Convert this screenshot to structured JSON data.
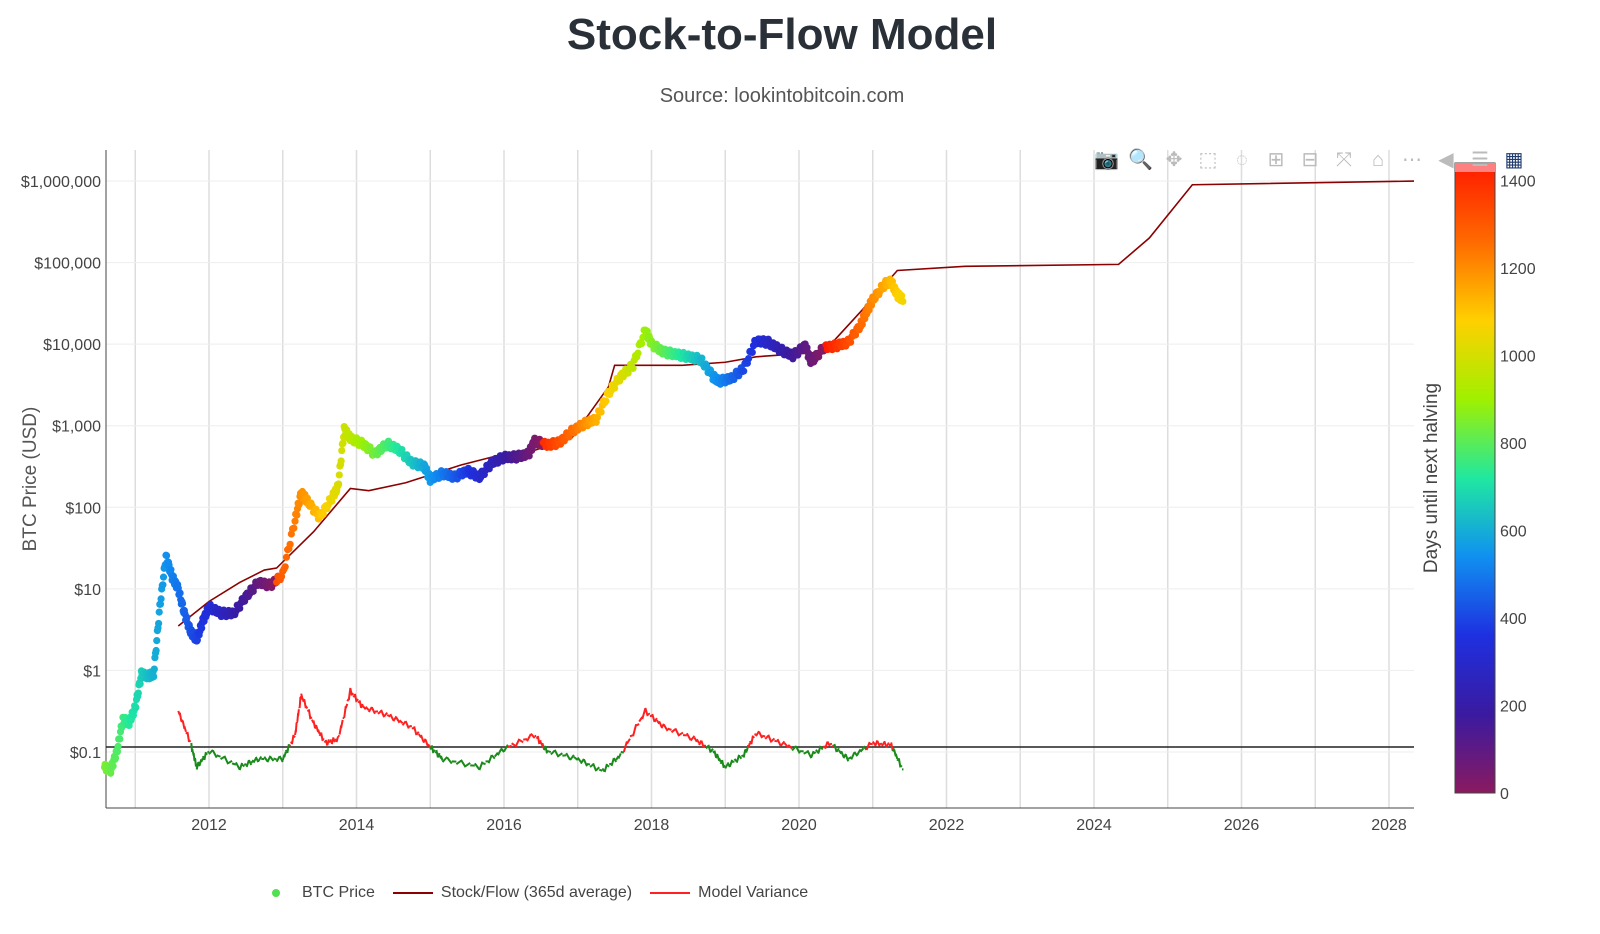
{
  "title": "Stock-to-Flow Model",
  "subtitle": "Source: lookintobitcoin.com",
  "toolbar": [
    {
      "name": "camera-icon",
      "glyph": "📷"
    },
    {
      "name": "zoom-icon",
      "glyph": "🔍"
    },
    {
      "name": "pan-icon",
      "glyph": "✥"
    },
    {
      "name": "box-select-icon",
      "glyph": "⬚"
    },
    {
      "name": "lasso-select-icon",
      "glyph": "◌"
    },
    {
      "name": "zoom-in-icon",
      "glyph": "⊞"
    },
    {
      "name": "zoom-out-icon",
      "glyph": "⊟"
    },
    {
      "name": "autoscale-icon",
      "glyph": "⤧"
    },
    {
      "name": "reset-axes-icon",
      "glyph": "⌂"
    },
    {
      "name": "spike-lines-icon",
      "glyph": "⋯"
    },
    {
      "name": "hover-closest-icon",
      "glyph": "◀"
    },
    {
      "name": "hover-compare-icon",
      "glyph": "☰"
    },
    {
      "name": "plotly-logo-icon",
      "glyph": "▦"
    }
  ],
  "chart_data": {
    "type": "scatter",
    "ylabel": "BTC Price (USD)",
    "yscale": "log",
    "ylim": [
      0.03,
      2000000
    ],
    "xlim": [
      "2010-08",
      "2028-05"
    ],
    "x_ticks": [
      "2012",
      "2014",
      "2016",
      "2018",
      "2020",
      "2022",
      "2024",
      "2026",
      "2028"
    ],
    "y_ticks": [
      {
        "v": 1000000,
        "label": "$1,000,000"
      },
      {
        "v": 100000,
        "label": "$100,000"
      },
      {
        "v": 10000,
        "label": "$10,000"
      },
      {
        "v": 1000,
        "label": "$1,000"
      },
      {
        "v": 100,
        "label": "$100"
      },
      {
        "v": 10,
        "label": "$10"
      },
      {
        "v": 1,
        "label": "$1"
      },
      {
        "v": 0.1,
        "label": "$0.1"
      }
    ],
    "grid": true,
    "legend_position": "bottom",
    "colorbar": {
      "title": "Days until next halving",
      "ticks": [
        0,
        200,
        400,
        600,
        800,
        1000,
        1200,
        1400
      ],
      "range": [
        0,
        1440
      ],
      "colors": [
        "#8a1a60",
        "#3a1aa0",
        "#1e30e0",
        "#1090f0",
        "#20e8a0",
        "#a0f000",
        "#ffd000",
        "#ff6a00",
        "#ff1a00"
      ]
    },
    "halvings": [
      "2012-11-28",
      "2016-07-09",
      "2020-05-11",
      "2024-04-20"
    ],
    "series": [
      {
        "name": "BTC Price",
        "kind": "markers",
        "color": "#50e050",
        "points": [
          [
            "2010-08",
            0.065
          ],
          [
            "2010-09",
            0.06
          ],
          [
            "2010-10",
            0.1
          ],
          [
            "2010-11",
            0.25
          ],
          [
            "2010-12",
            0.23
          ],
          [
            "2011-01",
            0.35
          ],
          [
            "2011-02",
            0.9
          ],
          [
            "2011-03",
            0.85
          ],
          [
            "2011-04",
            0.9
          ],
          [
            "2011-05",
            6
          ],
          [
            "2011-06",
            25
          ],
          [
            "2011-07",
            14
          ],
          [
            "2011-08",
            10
          ],
          [
            "2011-09",
            5
          ],
          [
            "2011-10",
            3
          ],
          [
            "2011-11",
            2.4
          ],
          [
            "2011-12",
            4
          ],
          [
            "2012-01",
            6
          ],
          [
            "2012-03",
            5
          ],
          [
            "2012-05",
            5
          ],
          [
            "2012-07",
            8
          ],
          [
            "2012-09",
            12
          ],
          [
            "2012-11",
            11
          ],
          [
            "2013-01",
            15
          ],
          [
            "2013-03",
            70
          ],
          [
            "2013-04",
            150
          ],
          [
            "2013-05",
            120
          ],
          [
            "2013-07",
            75
          ],
          [
            "2013-09",
            130
          ],
          [
            "2013-10",
            180
          ],
          [
            "2013-11",
            900
          ],
          [
            "2013-12",
            700
          ],
          [
            "2014-02",
            600
          ],
          [
            "2014-04",
            450
          ],
          [
            "2014-06",
            600
          ],
          [
            "2014-08",
            500
          ],
          [
            "2014-10",
            350
          ],
          [
            "2014-12",
            320
          ],
          [
            "2015-01",
            220
          ],
          [
            "2015-03",
            260
          ],
          [
            "2015-05",
            235
          ],
          [
            "2015-07",
            280
          ],
          [
            "2015-09",
            235
          ],
          [
            "2015-11",
            350
          ],
          [
            "2016-01",
            410
          ],
          [
            "2016-03",
            415
          ],
          [
            "2016-05",
            450
          ],
          [
            "2016-06",
            650
          ],
          [
            "2016-08",
            580
          ],
          [
            "2016-10",
            620
          ],
          [
            "2016-12",
            850
          ],
          [
            "2017-02",
            1050
          ],
          [
            "2017-04",
            1200
          ],
          [
            "2017-06",
            2500
          ],
          [
            "2017-08",
            4000
          ],
          [
            "2017-10",
            5500
          ],
          [
            "2017-12",
            15000
          ],
          [
            "2018-01",
            10000
          ],
          [
            "2018-03",
            8000
          ],
          [
            "2018-05",
            7500
          ],
          [
            "2018-07",
            7000
          ],
          [
            "2018-09",
            6500
          ],
          [
            "2018-11",
            4000
          ],
          [
            "2018-12",
            3500
          ],
          [
            "2019-02",
            3800
          ],
          [
            "2019-04",
            5000
          ],
          [
            "2019-06",
            11000
          ],
          [
            "2019-08",
            10500
          ],
          [
            "2019-10",
            8500
          ],
          [
            "2019-12",
            7200
          ],
          [
            "2020-02",
            9500
          ],
          [
            "2020-03",
            6000
          ],
          [
            "2020-05",
            9000
          ],
          [
            "2020-07",
            9500
          ],
          [
            "2020-09",
            10500
          ],
          [
            "2020-11",
            17000
          ],
          [
            "2020-12",
            25000
          ],
          [
            "2021-01",
            35000
          ],
          [
            "2021-03",
            55000
          ],
          [
            "2021-04",
            58000
          ],
          [
            "2021-05",
            40000
          ],
          [
            "2021-06",
            35000
          ]
        ]
      },
      {
        "name": "Stock/Flow (365d average)",
        "kind": "line",
        "color": "#8b0000",
        "points": [
          [
            "2011-08",
            3.5
          ],
          [
            "2012-01",
            7
          ],
          [
            "2012-06",
            12
          ],
          [
            "2012-10",
            17
          ],
          [
            "2012-12",
            18
          ],
          [
            "2013-06",
            50
          ],
          [
            "2013-12",
            170
          ],
          [
            "2014-03",
            160
          ],
          [
            "2014-09",
            200
          ],
          [
            "2015-06",
            330
          ],
          [
            "2016-01",
            450
          ],
          [
            "2016-06",
            500
          ],
          [
            "2016-12",
            700
          ],
          [
            "2017-06",
            3000
          ],
          [
            "2017-07",
            5500
          ],
          [
            "2018-06",
            5500
          ],
          [
            "2019-01",
            6000
          ],
          [
            "2019-06",
            7000
          ],
          [
            "2020-05",
            8000
          ],
          [
            "2020-12",
            30000
          ],
          [
            "2021-05",
            80000
          ],
          [
            "2022-04",
            90000
          ],
          [
            "2024-05",
            95000
          ],
          [
            "2024-10",
            200000
          ],
          [
            "2025-05",
            900000
          ],
          [
            "2028-06",
            1000000
          ]
        ]
      },
      {
        "name": "Model Variance",
        "kind": "line",
        "color": "#ff2020",
        "negative_color": "#1a8a1a",
        "baseline": 0,
        "points": [
          [
            "2011-08",
            0.9
          ],
          [
            "2011-10",
            0.1
          ],
          [
            "2011-11",
            -0.5
          ],
          [
            "2012-01",
            -0.1
          ],
          [
            "2012-06",
            -0.5
          ],
          [
            "2012-09",
            -0.3
          ],
          [
            "2013-01",
            -0.3
          ],
          [
            "2013-03",
            0.3
          ],
          [
            "2013-04",
            1.3
          ],
          [
            "2013-06",
            0.6
          ],
          [
            "2013-08",
            0.1
          ],
          [
            "2013-10",
            0.2
          ],
          [
            "2013-12",
            1.4
          ],
          [
            "2014-02",
            1.0
          ],
          [
            "2014-06",
            0.8
          ],
          [
            "2014-10",
            0.5
          ],
          [
            "2015-01",
            0
          ],
          [
            "2015-03",
            -0.3
          ],
          [
            "2015-09",
            -0.5
          ],
          [
            "2016-01",
            -0.05
          ],
          [
            "2016-06",
            0.3
          ],
          [
            "2016-08",
            -0.1
          ],
          [
            "2017-01",
            -0.3
          ],
          [
            "2017-05",
            -0.6
          ],
          [
            "2017-08",
            -0.2
          ],
          [
            "2017-12",
            0.9
          ],
          [
            "2018-03",
            0.5
          ],
          [
            "2018-08",
            0.2
          ],
          [
            "2018-11",
            -0.1
          ],
          [
            "2019-01",
            -0.5
          ],
          [
            "2019-04",
            -0.2
          ],
          [
            "2019-06",
            0.35
          ],
          [
            "2019-10",
            0.1
          ],
          [
            "2020-03",
            -0.2
          ],
          [
            "2020-06",
            0.1
          ],
          [
            "2020-09",
            -0.3
          ],
          [
            "2021-01",
            0.1
          ],
          [
            "2021-04",
            0.05
          ],
          [
            "2021-06",
            -0.6
          ]
        ]
      }
    ]
  }
}
